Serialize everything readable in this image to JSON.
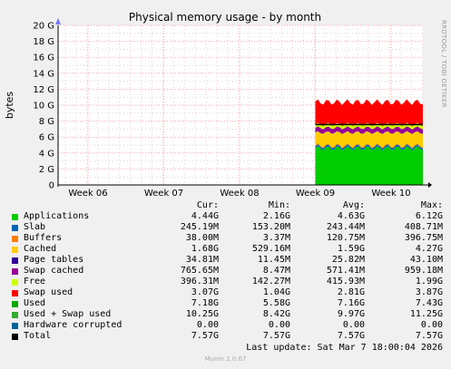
{
  "chart_data": {
    "type": "area",
    "title": "Physical memory usage - by month",
    "ylabel": "bytes",
    "side_label": "RRDTOOL / TOBI OETIKER",
    "y_ticks": [
      "0",
      "2 G",
      "4 G",
      "6 G",
      "8 G",
      "10 G",
      "12 G",
      "14 G",
      "16 G",
      "18 G",
      "20 G"
    ],
    "ylim": [
      0,
      20
    ],
    "x_ticks": [
      "Week 06",
      "Week 07",
      "Week 08",
      "Week 09",
      "Week 10"
    ],
    "grid": true,
    "data_start_week": 9.0,
    "stack": [
      {
        "name": "Applications",
        "color": "#00cc00",
        "approx_G": 4.6
      },
      {
        "name": "Slab",
        "color": "#0066b3",
        "approx_G": 0.24
      },
      {
        "name": "Buffers",
        "color": "#ff8000",
        "approx_G": 0.12
      },
      {
        "name": "Cached",
        "color": "#ffcc00",
        "approx_G": 1.6
      },
      {
        "name": "Page tables",
        "color": "#330099",
        "approx_G": 0.03
      },
      {
        "name": "Swap cached",
        "color": "#990099",
        "approx_G": 0.57
      },
      {
        "name": "Free",
        "color": "#ccff00",
        "approx_G": 0.42
      },
      {
        "name": "Swap used",
        "color": "#ff0000",
        "approx_G": 2.8
      }
    ],
    "total_line_G": 7.57,
    "legend_headers": [
      "Cur:",
      "Min:",
      "Avg:",
      "Max:"
    ],
    "legend": [
      {
        "name": "Applications",
        "color": "#00cc00",
        "cur": "4.44G",
        "min": "2.16G",
        "avg": "4.63G",
        "max": "6.12G"
      },
      {
        "name": "Slab",
        "color": "#0066b3",
        "cur": "245.19M",
        "min": "153.20M",
        "avg": "243.44M",
        "max": "408.71M"
      },
      {
        "name": "Buffers",
        "color": "#ff8000",
        "cur": "38.00M",
        "min": "3.37M",
        "avg": "120.75M",
        "max": "396.75M"
      },
      {
        "name": "Cached",
        "color": "#ffcc00",
        "cur": "1.68G",
        "min": "529.16M",
        "avg": "1.59G",
        "max": "4.27G"
      },
      {
        "name": "Page tables",
        "color": "#330099",
        "cur": "34.81M",
        "min": "11.45M",
        "avg": "25.82M",
        "max": "43.10M"
      },
      {
        "name": "Swap cached",
        "color": "#990099",
        "cur": "765.65M",
        "min": "8.47M",
        "avg": "571.41M",
        "max": "959.18M"
      },
      {
        "name": "Free",
        "color": "#ccff00",
        "cur": "396.31M",
        "min": "142.27M",
        "avg": "415.93M",
        "max": "1.99G"
      },
      {
        "name": "Swap used",
        "color": "#ff0000",
        "cur": "3.07G",
        "min": "1.04G",
        "avg": "2.81G",
        "max": "3.87G"
      },
      {
        "name": "Used",
        "color": "#00aa00",
        "cur": "7.18G",
        "min": "5.58G",
        "avg": "7.16G",
        "max": "7.43G"
      },
      {
        "name": "Used + Swap used",
        "color": "#33aa33",
        "cur": "10.25G",
        "min": "8.42G",
        "avg": "9.97G",
        "max": "11.25G"
      },
      {
        "name": "Hardware corrupted",
        "color": "#006699",
        "cur": "0.00",
        "min": "0.00",
        "avg": "0.00",
        "max": "0.00"
      },
      {
        "name": "Total",
        "color": "#000000",
        "cur": "7.57G",
        "min": "7.57G",
        "avg": "7.57G",
        "max": "7.57G"
      }
    ],
    "last_update": "Last update: Sat Mar  7 18:00:04 2026",
    "footer": "Munin 2.0.67"
  }
}
